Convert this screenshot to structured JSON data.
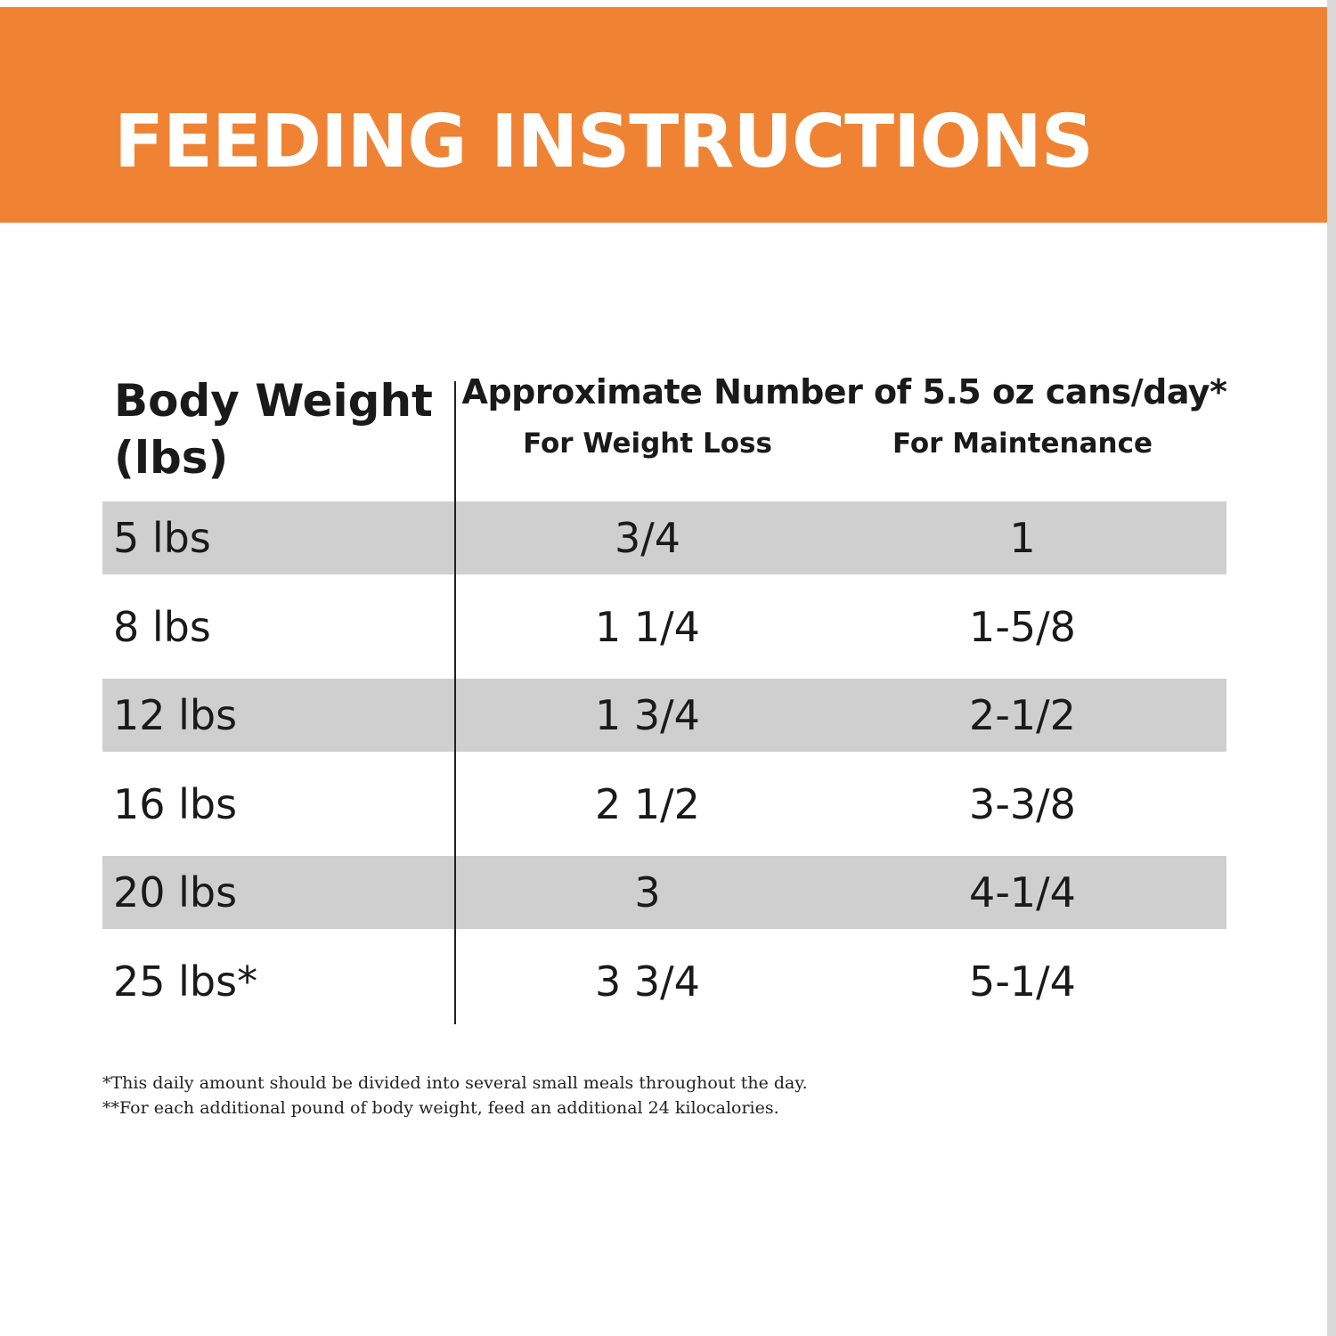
{
  "header": {
    "title": "FEEDING INSTRUCTIONS"
  },
  "table": {
    "row_header": "Body Weight (lbs)",
    "group_header": "Approximate Number of 5.5 oz cans/day*",
    "columns": [
      "For Weight Loss",
      "For Maintenance"
    ],
    "rows": [
      [
        "5 lbs",
        "3/4",
        "1"
      ],
      [
        "8 lbs",
        "1 1/4",
        "1-5/8"
      ],
      [
        "12 lbs",
        "1 3/4",
        "2-1/2"
      ],
      [
        "16 lbs",
        "2 1/2",
        "3-3/8"
      ],
      [
        "20 lbs",
        "3",
        "4-1/4"
      ],
      [
        "25 lbs*",
        "3 3/4",
        "5-1/4"
      ]
    ]
  },
  "footnotes": [
    "*This daily amount should be divided into several small meals throughout the day.",
    "**For each additional pound of body weight, feed an additional 24 kilocalories."
  ]
}
